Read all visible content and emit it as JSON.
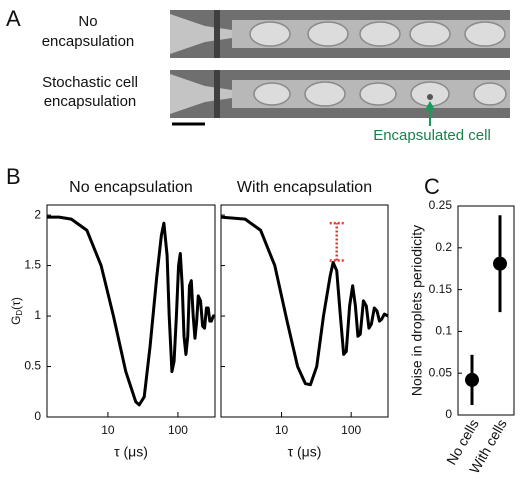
{
  "panel_a": {
    "label": "A",
    "rows": [
      {
        "lines": [
          "No",
          "encapsulation"
        ]
      },
      {
        "lines": [
          "Stochastic cell",
          "encapsulation"
        ]
      }
    ],
    "annotation": "Encapsulated cell"
  },
  "panel_b_label": "B",
  "panel_c_label": "C",
  "chart_data": [
    {
      "type": "line",
      "title": "No encapsulation",
      "xlabel": "τ (μs)",
      "ylabel": [
        "G",
        "D",
        "(τ)"
      ],
      "log_x": true,
      "xlim": [
        1.35,
        338
      ],
      "xticks": [
        10,
        100
      ],
      "ylim": [
        0,
        2.1
      ],
      "yticks": [
        0,
        0.5,
        1,
        1.5,
        2
      ],
      "show_ytick_labels": true,
      "color": "#000000",
      "x": [
        1.35,
        2,
        3,
        5,
        8,
        12,
        18,
        25,
        28,
        33,
        40,
        50,
        58,
        63,
        70,
        75,
        82,
        88,
        95,
        102,
        108,
        115,
        122,
        130,
        138,
        146,
        155,
        165,
        175,
        185,
        195,
        210,
        225,
        240,
        255,
        270,
        285,
        300,
        320,
        338
      ],
      "values": [
        1.98,
        1.98,
        1.96,
        1.85,
        1.5,
        1.0,
        0.45,
        0.15,
        0.12,
        0.2,
        0.7,
        1.4,
        1.8,
        1.92,
        1.6,
        1.0,
        0.45,
        0.55,
        1.0,
        1.5,
        1.62,
        1.3,
        0.8,
        0.62,
        0.8,
        1.3,
        1.35,
        1.0,
        0.78,
        0.95,
        1.2,
        1.15,
        0.9,
        0.88,
        1.08,
        1.08,
        0.95,
        0.95,
        1.0,
        1.0
      ]
    },
    {
      "type": "line",
      "title": "With encapsulation",
      "xlabel": "τ (μs)",
      "log_x": true,
      "xlim": [
        1.35,
        338
      ],
      "xticks": [
        10,
        100
      ],
      "ylim": [
        0,
        2.1
      ],
      "yticks": [
        0,
        0.5,
        1,
        1.5,
        2
      ],
      "show_ytick_labels": false,
      "color": "#000000",
      "x": [
        1.35,
        3,
        5,
        8,
        12,
        17,
        22,
        26,
        32,
        40,
        50,
        55,
        62,
        70,
        78,
        85,
        95,
        105,
        115,
        125,
        135,
        150,
        165,
        180,
        195,
        215,
        235,
        255,
        275,
        300,
        338
      ],
      "values": [
        1.98,
        1.96,
        1.85,
        1.5,
        0.95,
        0.5,
        0.33,
        0.32,
        0.5,
        1.0,
        1.4,
        1.53,
        1.45,
        1.0,
        0.62,
        0.65,
        1.1,
        1.3,
        1.1,
        0.8,
        0.82,
        1.15,
        1.1,
        0.88,
        0.92,
        1.08,
        1.05,
        0.95,
        0.97,
        1.02,
        1.0
      ],
      "bracket": {
        "x": 62,
        "range": [
          1.55,
          1.92
        ],
        "color": "#e8352c"
      }
    },
    {
      "type": "scatter",
      "ylabel": "Noise in droplets periodicity",
      "categories": [
        "No cells",
        "With cells"
      ],
      "values": [
        0.042,
        0.181
      ],
      "errors": [
        0.03,
        0.058
      ],
      "color": "#000000",
      "ylim": [
        0,
        0.25
      ],
      "yticks": [
        0,
        0.05,
        0.1,
        0.15,
        0.2,
        0.25
      ],
      "show_ytick_labels": true
    }
  ]
}
